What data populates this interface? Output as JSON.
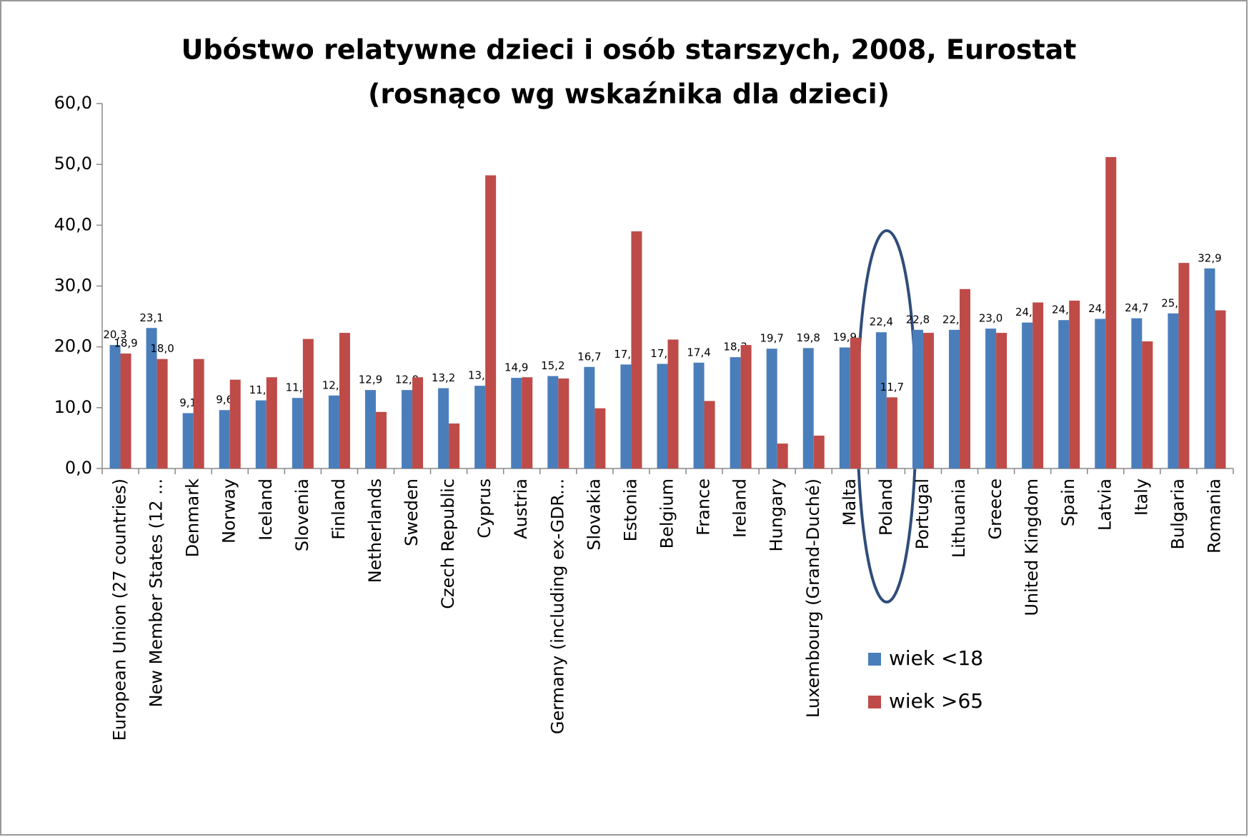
{
  "chart_data": {
    "type": "bar",
    "title": "Ubóstwo relatywne dzieci i osób starszych, 2008, Eurostat",
    "subtitle": "(rosnąco wg wskaźnika dla dzieci)",
    "categories": [
      "European Union (27 countries)",
      "New Member States (12 ...",
      "Denmark",
      "Norway",
      "Iceland",
      "Slovenia",
      "Finland",
      "Netherlands",
      "Sweden",
      "Czech Republic",
      "Cyprus",
      "Austria",
      "Germany (including ex-GDR...",
      "Slovakia",
      "Estonia",
      "Belgium",
      "France",
      "Ireland",
      "Hungary",
      "Luxembourg (Grand-Duché)",
      "Malta",
      "Poland",
      "Portugal",
      "Lithuania",
      "Greece",
      "United Kingdom",
      "Spain",
      "Latvia",
      "Italy",
      "Bulgaria",
      "Romania"
    ],
    "series": [
      {
        "name": "wiek <18",
        "color": "#4a7ebb",
        "values": [
          20.3,
          23.1,
          9.1,
          9.6,
          11.2,
          11.6,
          12.0,
          12.9,
          12.9,
          13.2,
          13.6,
          14.9,
          15.2,
          16.7,
          17.1,
          17.2,
          17.4,
          18.3,
          19.7,
          19.8,
          19.9,
          22.4,
          22.8,
          22.8,
          23.0,
          24.0,
          24.4,
          24.6,
          24.7,
          25.5,
          32.9
        ],
        "value_labels": [
          "20,3",
          "23,1",
          "9,1",
          "9,6",
          "11,2",
          "11,6",
          "12,0",
          "12,9",
          "12,9",
          "13,2",
          "13,6",
          "14,9",
          "15,2",
          "16,7",
          "17,1",
          "17,2",
          "17,4",
          "18,3",
          "19,7",
          "19,8",
          "19,9",
          "22,4",
          "22,8",
          "22,8",
          "23,0",
          "24,0",
          "24,4",
          "24,6",
          "24,7",
          "25,5",
          "32,9"
        ]
      },
      {
        "name": "wiek >65",
        "color": "#be4b48",
        "values": [
          18.9,
          18.0,
          18.0,
          14.6,
          15.0,
          21.3,
          22.3,
          9.3,
          15.0,
          7.4,
          48.2,
          15.0,
          14.8,
          9.9,
          39.0,
          21.2,
          11.1,
          20.3,
          4.1,
          5.4,
          21.5,
          11.7,
          22.3,
          29.5,
          22.3,
          27.3,
          27.6,
          51.2,
          20.9,
          33.8,
          26.0
        ],
        "value_labels": [
          "18,9",
          "18,0",
          null,
          null,
          null,
          null,
          null,
          null,
          null,
          null,
          null,
          null,
          null,
          null,
          null,
          null,
          null,
          null,
          null,
          null,
          null,
          "11,7",
          null,
          null,
          null,
          null,
          null,
          null,
          null,
          null,
          null
        ]
      }
    ],
    "ylim": [
      0,
      60
    ],
    "yticks": [
      {
        "value": 0,
        "label": "0,0"
      },
      {
        "value": 10,
        "label": "10,0"
      },
      {
        "value": 20,
        "label": "20,0"
      },
      {
        "value": 30,
        "label": "30,0"
      },
      {
        "value": 40,
        "label": "40,0"
      },
      {
        "value": 50,
        "label": "50,0"
      },
      {
        "value": 60,
        "label": "60,0"
      }
    ],
    "grid": false,
    "legend": "right"
  }
}
